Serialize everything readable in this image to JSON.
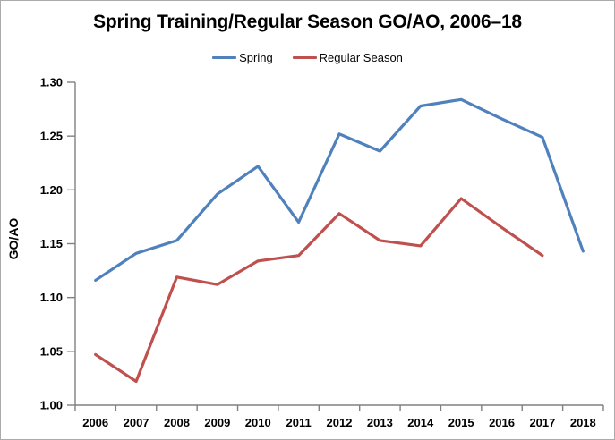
{
  "chart_data": {
    "type": "line",
    "title": "Spring Training/Regular Season GO/AO, 2006–18",
    "ylabel": "GO/AO",
    "xlabel": "",
    "categories": [
      "2006",
      "2007",
      "2008",
      "2009",
      "2010",
      "2011",
      "2012",
      "2013",
      "2014",
      "2015",
      "2016",
      "2017",
      "2018"
    ],
    "series": [
      {
        "name": "Spring",
        "color": "#4F81BD",
        "values": [
          1.116,
          1.141,
          1.153,
          1.196,
          1.222,
          1.17,
          1.252,
          1.236,
          1.278,
          1.284,
          1.266,
          1.249,
          1.143
        ]
      },
      {
        "name": "Regular Season",
        "color": "#C0504D",
        "values": [
          1.047,
          1.022,
          1.119,
          1.112,
          1.134,
          1.139,
          1.178,
          1.153,
          1.148,
          1.192,
          1.165,
          1.139,
          null
        ]
      }
    ],
    "ylim": [
      1.0,
      1.3
    ],
    "ytick_step": 0.05,
    "yticks": [
      "1.00",
      "1.05",
      "1.10",
      "1.15",
      "1.20",
      "1.25",
      "1.30"
    ],
    "grid": false,
    "legend_position": "top",
    "axis_color": "#808080",
    "text_color": "#000000"
  }
}
